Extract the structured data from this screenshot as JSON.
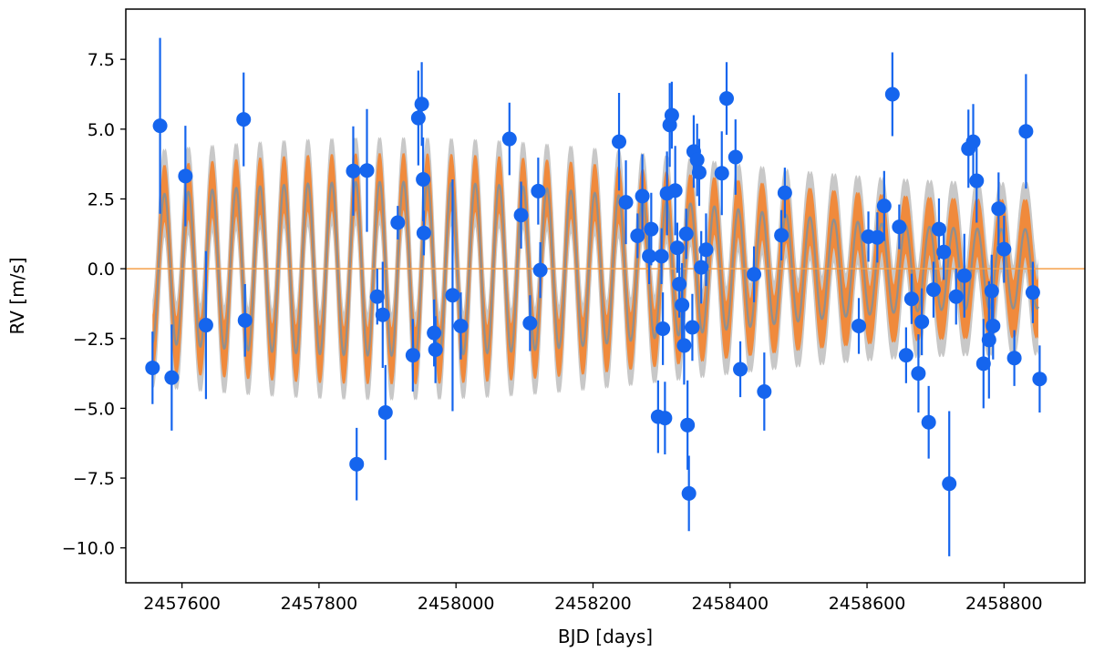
{
  "chart_data": {
    "type": "scatter",
    "title": "",
    "xlabel": "BJD [days]",
    "ylabel": "RV [m/s]",
    "xlim": [
      2457518,
      2458918
    ],
    "ylim": [
      -11.25,
      9.3
    ],
    "xticks": [
      2457600,
      2457800,
      2458000,
      2458200,
      2458400,
      2458600,
      2458800
    ],
    "yticks": [
      -10.0,
      -7.5,
      -5.0,
      -2.5,
      0.0,
      2.5,
      5.0,
      7.5
    ],
    "grid": false,
    "legend": "none",
    "reference_line": {
      "y": 0.0,
      "color": "#f5a04a"
    },
    "model": {
      "x_start": 2457557,
      "x_end": 2458850,
      "period_days": 34.9,
      "mean_amplitude": 2.3,
      "band_colors": {
        "outer": "#c8c8c8",
        "inner": "#f08a3c",
        "mean_line": "#8f8f8f"
      }
    },
    "colors": {
      "points": "#1565ee",
      "errorbars": "#1565ee"
    },
    "points": [
      {
        "x": 2457557,
        "y": -3.55,
        "err": 1.3
      },
      {
        "x": 2457568,
        "y": 5.12,
        "err": 3.15
      },
      {
        "x": 2457585,
        "y": -3.9,
        "err": 1.9
      },
      {
        "x": 2457605,
        "y": 3.32,
        "err": 1.8
      },
      {
        "x": 2457635,
        "y": -2.02,
        "err": 2.65
      },
      {
        "x": 2457690,
        "y": 5.35,
        "err": 1.68
      },
      {
        "x": 2457692,
        "y": -1.85,
        "err": 1.3
      },
      {
        "x": 2457850,
        "y": 3.5,
        "err": 1.6
      },
      {
        "x": 2457855,
        "y": -7.0,
        "err": 1.3
      },
      {
        "x": 2457870,
        "y": 3.52,
        "err": 2.2
      },
      {
        "x": 2457885,
        "y": -1.0,
        "err": 1.0
      },
      {
        "x": 2457893,
        "y": -1.65,
        "err": 1.9
      },
      {
        "x": 2457897,
        "y": -5.15,
        "err": 1.7
      },
      {
        "x": 2457915,
        "y": 1.65,
        "err": 0.6
      },
      {
        "x": 2457937,
        "y": -3.1,
        "err": 1.3
      },
      {
        "x": 2457945,
        "y": 5.4,
        "err": 1.7
      },
      {
        "x": 2457950,
        "y": 5.9,
        "err": 1.5
      },
      {
        "x": 2457952,
        "y": 3.2,
        "err": 1.5
      },
      {
        "x": 2457953,
        "y": 1.28,
        "err": 0.8
      },
      {
        "x": 2457968,
        "y": -2.3,
        "err": 1.2
      },
      {
        "x": 2457970,
        "y": -2.9,
        "err": 1.2
      },
      {
        "x": 2457995,
        "y": -0.95,
        "err": 4.15
      },
      {
        "x": 2458007,
        "y": -2.05,
        "err": 1.2
      },
      {
        "x": 2458078,
        "y": 4.65,
        "err": 1.3
      },
      {
        "x": 2458095,
        "y": 1.92,
        "err": 1.2
      },
      {
        "x": 2458108,
        "y": -1.95,
        "err": 1.0
      },
      {
        "x": 2458120,
        "y": 2.78,
        "err": 1.2
      },
      {
        "x": 2458123,
        "y": -0.05,
        "err": 1.0
      },
      {
        "x": 2458238,
        "y": 4.55,
        "err": 1.75
      },
      {
        "x": 2458248,
        "y": 2.38,
        "err": 1.5
      },
      {
        "x": 2458265,
        "y": 1.18,
        "err": 0.8
      },
      {
        "x": 2458272,
        "y": 2.6,
        "err": 1.5
      },
      {
        "x": 2458282,
        "y": 0.45,
        "err": 1.0
      },
      {
        "x": 2458285,
        "y": 1.42,
        "err": 1.3
      },
      {
        "x": 2458295,
        "y": -5.3,
        "err": 1.3
      },
      {
        "x": 2458300,
        "y": 0.45,
        "err": 1.0
      },
      {
        "x": 2458302,
        "y": -2.15,
        "err": 1.3
      },
      {
        "x": 2458305,
        "y": -5.35,
        "err": 1.3
      },
      {
        "x": 2458308,
        "y": 2.7,
        "err": 1.5
      },
      {
        "x": 2458312,
        "y": 5.15,
        "err": 1.5
      },
      {
        "x": 2458315,
        "y": 5.5,
        "err": 1.2
      },
      {
        "x": 2458320,
        "y": 2.8,
        "err": 1.6
      },
      {
        "x": 2458323,
        "y": 0.75,
        "err": 0.9
      },
      {
        "x": 2458326,
        "y": -0.55,
        "err": 1.2
      },
      {
        "x": 2458330,
        "y": -1.3,
        "err": 1.5
      },
      {
        "x": 2458333,
        "y": -2.75,
        "err": 1.4
      },
      {
        "x": 2458336,
        "y": 1.25,
        "err": 0.9
      },
      {
        "x": 2458338,
        "y": -5.6,
        "err": 1.6
      },
      {
        "x": 2458340,
        "y": -8.05,
        "err": 1.35
      },
      {
        "x": 2458345,
        "y": -2.1,
        "err": 1.2
      },
      {
        "x": 2458347,
        "y": 4.2,
        "err": 1.3
      },
      {
        "x": 2458352,
        "y": 3.9,
        "err": 1.3
      },
      {
        "x": 2458355,
        "y": 3.45,
        "err": 1.2
      },
      {
        "x": 2458358,
        "y": 0.05,
        "err": 1.3
      },
      {
        "x": 2458365,
        "y": 0.68,
        "err": 1.3
      },
      {
        "x": 2458388,
        "y": 3.42,
        "err": 1.5
      },
      {
        "x": 2458395,
        "y": 6.1,
        "err": 1.3
      },
      {
        "x": 2458408,
        "y": 4.0,
        "err": 1.35
      },
      {
        "x": 2458415,
        "y": -3.6,
        "err": 1.0
      },
      {
        "x": 2458435,
        "y": -0.2,
        "err": 1.0
      },
      {
        "x": 2458450,
        "y": -4.4,
        "err": 1.4
      },
      {
        "x": 2458475,
        "y": 1.2,
        "err": 0.9
      },
      {
        "x": 2458480,
        "y": 2.72,
        "err": 0.9
      },
      {
        "x": 2458588,
        "y": -2.05,
        "err": 1.0
      },
      {
        "x": 2458602,
        "y": 1.15,
        "err": 0.9
      },
      {
        "x": 2458615,
        "y": 1.12,
        "err": 0.9
      },
      {
        "x": 2458625,
        "y": 2.25,
        "err": 1.25
      },
      {
        "x": 2458637,
        "y": 6.25,
        "err": 1.5
      },
      {
        "x": 2458647,
        "y": 1.5,
        "err": 0.8
      },
      {
        "x": 2458657,
        "y": -3.1,
        "err": 1.0
      },
      {
        "x": 2458665,
        "y": -1.08,
        "err": 0.9
      },
      {
        "x": 2458675,
        "y": -3.75,
        "err": 1.4
      },
      {
        "x": 2458680,
        "y": -1.9,
        "err": 1.2
      },
      {
        "x": 2458690,
        "y": -5.5,
        "err": 1.3
      },
      {
        "x": 2458697,
        "y": -0.75,
        "err": 1.0
      },
      {
        "x": 2458705,
        "y": 1.42,
        "err": 1.1
      },
      {
        "x": 2458712,
        "y": 0.6,
        "err": 1.0
      },
      {
        "x": 2458720,
        "y": -7.7,
        "err": 2.6
      },
      {
        "x": 2458730,
        "y": -1.0,
        "err": 1.0
      },
      {
        "x": 2458742,
        "y": -0.25,
        "err": 1.5
      },
      {
        "x": 2458748,
        "y": 4.3,
        "err": 1.4
      },
      {
        "x": 2458755,
        "y": 4.55,
        "err": 1.35
      },
      {
        "x": 2458760,
        "y": 3.15,
        "err": 1.5
      },
      {
        "x": 2458770,
        "y": -3.4,
        "err": 1.6
      },
      {
        "x": 2458778,
        "y": -2.55,
        "err": 2.1
      },
      {
        "x": 2458782,
        "y": -0.8,
        "err": 1.3
      },
      {
        "x": 2458784,
        "y": -2.05,
        "err": 1.2
      },
      {
        "x": 2458792,
        "y": 2.15,
        "err": 1.3
      },
      {
        "x": 2458800,
        "y": 0.7,
        "err": 1.2
      },
      {
        "x": 2458815,
        "y": -3.2,
        "err": 1.0
      },
      {
        "x": 2458832,
        "y": 4.92,
        "err": 2.05
      },
      {
        "x": 2458842,
        "y": -0.85,
        "err": 1.1
      },
      {
        "x": 2458852,
        "y": -3.95,
        "err": 1.2
      }
    ]
  }
}
